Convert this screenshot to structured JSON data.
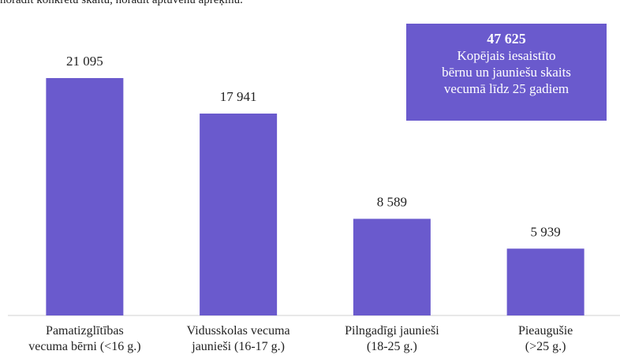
{
  "chart_data": {
    "type": "bar",
    "note": "norādīt konkrētu skaitu, norādīt aptuvenu aprēķinu.",
    "categories": [
      "Pamatizglītības\nvecuma bērni (<16 g.)",
      "Vidusskolas vecuma\njaunieši (16-17 g.)",
      "Pilngadīgi jaunieši\n(18-25 g.)",
      "Pieaugušie (>25 g.)"
    ],
    "values": [
      21095,
      17941,
      8589,
      5939
    ],
    "value_labels": [
      "21 095",
      "17 941",
      "8 589",
      "5 939"
    ],
    "color": "#6a5acd",
    "annotation": {
      "title": "47 625",
      "text": "Kopējais iesaistīto\nbērnu un jauniešu skaits\nvecumā līdz 25 gadiem",
      "color": "#6a5acd"
    }
  }
}
